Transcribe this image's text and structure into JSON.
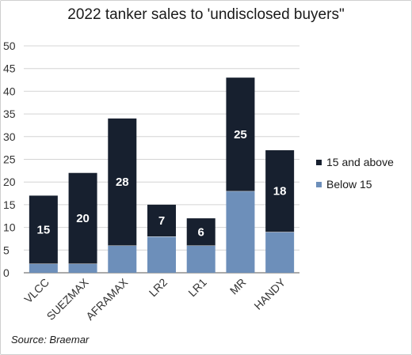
{
  "title": "2022 tanker sales to 'undisclosed buyers\"",
  "source": "Source: Braemar",
  "chart_data": {
    "type": "bar",
    "stacked": true,
    "categories": [
      "VLCC",
      "SUEZMAX",
      "AFRAMAX",
      "LR2",
      "LR1",
      "MR",
      "HANDY"
    ],
    "series": [
      {
        "name": "Below 15",
        "values": [
          2,
          2,
          6,
          8,
          6,
          18,
          9
        ],
        "color": "#6d8fba"
      },
      {
        "name": "15 and above",
        "values": [
          15,
          20,
          28,
          7,
          6,
          25,
          18
        ],
        "color": "#17202f"
      }
    ],
    "data_labels": [
      "15",
      "20",
      "28",
      "7",
      "6",
      "25",
      "18"
    ],
    "y_ticks": [
      "0",
      "5",
      "10",
      "15",
      "20",
      "25",
      "30",
      "35",
      "40",
      "45",
      "50"
    ],
    "ylim": [
      0,
      50
    ],
    "grid": true,
    "legend_position": "right"
  }
}
